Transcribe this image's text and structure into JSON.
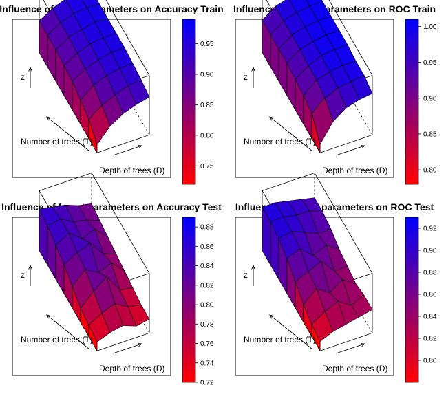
{
  "chart_data": [
    {
      "type": "surface3d",
      "title": "Influence of forest parameters on Accuracy Train",
      "xlabel": "Number of trees (T)",
      "ylabel": "Depth of trees (D)",
      "zlabel": "z",
      "colorbar": {
        "ticks": [
          "0.95",
          "0.90",
          "0.85",
          "0.80",
          "0.75"
        ],
        "min": 0.72,
        "max": 0.99,
        "tick_values": [
          0.95,
          0.9,
          0.85,
          0.8,
          0.75
        ]
      },
      "colors": {
        "low": "#ff0000",
        "high": "#0000ff"
      },
      "z": [
        [
          0.88,
          0.93,
          0.96,
          0.96,
          0.96
        ],
        [
          0.88,
          0.93,
          0.96,
          0.97,
          0.96
        ],
        [
          0.88,
          0.93,
          0.95,
          0.97,
          0.96
        ],
        [
          0.87,
          0.92,
          0.95,
          0.96,
          0.96
        ],
        [
          0.86,
          0.91,
          0.94,
          0.96,
          0.96
        ],
        [
          0.83,
          0.9,
          0.93,
          0.95,
          0.95
        ],
        [
          0.8,
          0.86,
          0.9,
          0.93,
          0.94
        ],
        [
          0.73,
          0.82,
          0.87,
          0.9,
          0.92
        ]
      ]
    },
    {
      "type": "surface3d",
      "title": "Influence of forest parameters on ROC Train",
      "xlabel": "Number of trees (T)",
      "ylabel": "Depth of trees (D)",
      "zlabel": "z",
      "colorbar": {
        "ticks": [
          "1.00",
          "0.95",
          "0.90",
          "0.85",
          "0.80"
        ],
        "min": 0.78,
        "max": 1.01,
        "tick_values": [
          1.0,
          0.95,
          0.9,
          0.85,
          0.8
        ]
      },
      "colors": {
        "low": "#ff0000",
        "high": "#0000ff"
      },
      "z": [
        [
          0.92,
          0.97,
          0.99,
          1.0,
          1.0
        ],
        [
          0.92,
          0.97,
          0.99,
          1.0,
          1.0
        ],
        [
          0.92,
          0.97,
          0.99,
          1.0,
          1.0
        ],
        [
          0.92,
          0.97,
          0.99,
          1.0,
          1.0
        ],
        [
          0.91,
          0.96,
          0.99,
          1.0,
          1.0
        ],
        [
          0.9,
          0.96,
          0.98,
          0.99,
          0.99
        ],
        [
          0.88,
          0.94,
          0.97,
          0.98,
          0.99
        ],
        [
          0.79,
          0.89,
          0.94,
          0.96,
          0.97
        ]
      ]
    },
    {
      "type": "surface3d",
      "title": "Influence of forest parameters on Accuracy Test",
      "xlabel": "Number of trees (T)",
      "ylabel": "Depth of trees (D)",
      "zlabel": "z",
      "colorbar": {
        "ticks": [
          "0.88",
          "0.86",
          "0.84",
          "0.82",
          "0.80",
          "0.78",
          "0.76",
          "0.74",
          "0.72"
        ],
        "min": 0.72,
        "max": 0.89,
        "tick_values": [
          0.88,
          0.86,
          0.84,
          0.82,
          0.8,
          0.78,
          0.76,
          0.74,
          0.72
        ]
      },
      "colors": {
        "low": "#ff0000",
        "high": "#0000ff"
      },
      "z": [
        [
          0.86,
          0.85,
          0.84,
          0.82,
          0.81
        ],
        [
          0.85,
          0.86,
          0.83,
          0.82,
          0.8
        ],
        [
          0.83,
          0.86,
          0.82,
          0.84,
          0.79
        ],
        [
          0.81,
          0.84,
          0.86,
          0.8,
          0.78
        ],
        [
          0.78,
          0.83,
          0.8,
          0.82,
          0.77
        ],
        [
          0.75,
          0.8,
          0.84,
          0.77,
          0.76
        ],
        [
          0.74,
          0.77,
          0.79,
          0.76,
          0.75
        ],
        [
          0.73,
          0.75,
          0.76,
          0.74,
          0.75
        ]
      ]
    },
    {
      "type": "surface3d",
      "title": "Influence of forest parameters on ROC Test",
      "xlabel": "Number of trees (T)",
      "ylabel": "Depth of trees (D)",
      "zlabel": "z",
      "colorbar": {
        "ticks": [
          "0.92",
          "0.90",
          "0.88",
          "0.86",
          "0.84",
          "0.82",
          "0.80"
        ],
        "min": 0.78,
        "max": 0.93,
        "tick_values": [
          0.92,
          0.9,
          0.88,
          0.86,
          0.84,
          0.82,
          0.8
        ]
      },
      "colors": {
        "low": "#ff0000",
        "high": "#0000ff"
      },
      "z": [
        [
          0.91,
          0.91,
          0.9,
          0.89,
          0.88
        ],
        [
          0.91,
          0.91,
          0.9,
          0.9,
          0.88
        ],
        [
          0.9,
          0.91,
          0.89,
          0.87,
          0.87
        ],
        [
          0.88,
          0.9,
          0.86,
          0.88,
          0.85
        ],
        [
          0.85,
          0.87,
          0.89,
          0.84,
          0.84
        ],
        [
          0.82,
          0.86,
          0.83,
          0.86,
          0.83
        ],
        [
          0.8,
          0.83,
          0.85,
          0.82,
          0.84
        ],
        [
          0.79,
          0.81,
          0.82,
          0.83,
          0.84
        ]
      ]
    }
  ]
}
